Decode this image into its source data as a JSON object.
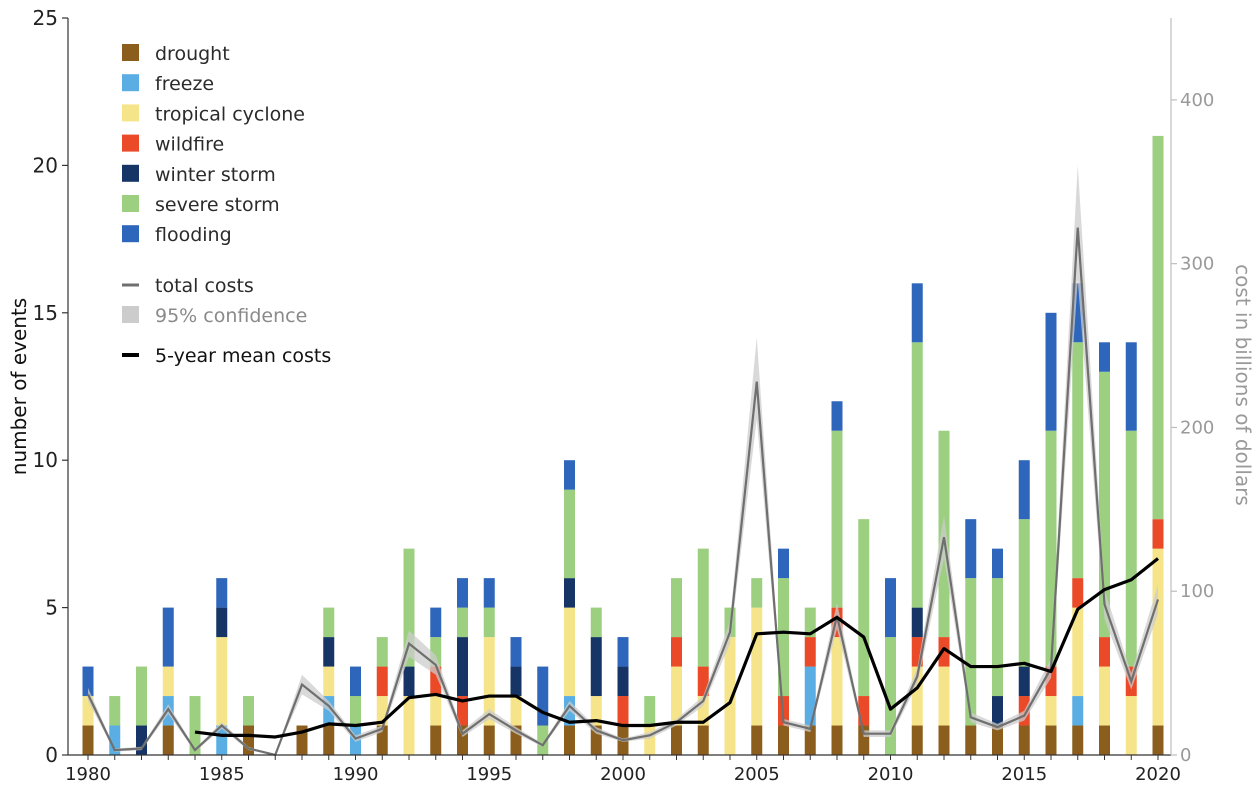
{
  "chart_data": {
    "type": "bar",
    "x": [
      1980,
      1981,
      1982,
      1983,
      1984,
      1985,
      1986,
      1987,
      1988,
      1989,
      1990,
      1991,
      1992,
      1993,
      1994,
      1995,
      1996,
      1997,
      1998,
      1999,
      2000,
      2001,
      2002,
      2003,
      2004,
      2005,
      2006,
      2007,
      2008,
      2009,
      2010,
      2011,
      2012,
      2013,
      2014,
      2015,
      2016,
      2017,
      2018,
      2019,
      2020
    ],
    "x_ticks": [
      "1980",
      "1985",
      "1990",
      "1995",
      "2000",
      "2005",
      "2010",
      "2015",
      "2020"
    ],
    "ylabel": "number of events",
    "y_ticks": [
      "0",
      "5",
      "10",
      "15",
      "20",
      "25"
    ],
    "ylim": [
      0,
      25
    ],
    "y2label": "cost in billions of dollars",
    "y2_ticks": [
      "0",
      "100",
      "200",
      "300",
      "400"
    ],
    "y2lim": [
      0,
      450
    ],
    "stack_order": [
      "drought",
      "freeze",
      "tropical cyclone",
      "wildfire",
      "winter storm",
      "severe storm",
      "flooding"
    ],
    "series": [
      {
        "name": "drought",
        "color": "#8b5e1e",
        "values": [
          1,
          0,
          0,
          1,
          0,
          0,
          1,
          0,
          1,
          1,
          0,
          1,
          0,
          1,
          1,
          1,
          1,
          0,
          1,
          1,
          1,
          0,
          1,
          1,
          0,
          1,
          1,
          1,
          1,
          1,
          0,
          1,
          1,
          1,
          1,
          1,
          1,
          1,
          1,
          0,
          1
        ]
      },
      {
        "name": "freeze",
        "color": "#5aaee3",
        "values": [
          0,
          1,
          0,
          1,
          0,
          1,
          0,
          0,
          0,
          1,
          1,
          0,
          0,
          0,
          0,
          0,
          0,
          0,
          1,
          0,
          0,
          0,
          0,
          0,
          0,
          0,
          0,
          2,
          0,
          0,
          0,
          0,
          0,
          0,
          0,
          0,
          0,
          1,
          0,
          0,
          0
        ]
      },
      {
        "name": "tropical cyclone",
        "color": "#f6e48a",
        "values": [
          1,
          0,
          0,
          1,
          0,
          3,
          0,
          0,
          0,
          1,
          0,
          1,
          2,
          1,
          0,
          3,
          1,
          0,
          3,
          1,
          0,
          1,
          2,
          1,
          4,
          4,
          0,
          0,
          3,
          0,
          0,
          2,
          2,
          0,
          0,
          0,
          1,
          3,
          2,
          2,
          6
        ]
      },
      {
        "name": "wildfire",
        "color": "#ea4a28",
        "values": [
          0,
          0,
          0,
          0,
          0,
          0,
          0,
          0,
          0,
          0,
          0,
          1,
          0,
          1,
          1,
          0,
          0,
          0,
          0,
          0,
          1,
          0,
          1,
          1,
          0,
          0,
          1,
          1,
          1,
          1,
          0,
          1,
          1,
          0,
          0,
          1,
          1,
          1,
          1,
          1,
          1
        ]
      },
      {
        "name": "winter storm",
        "color": "#163566",
        "values": [
          0,
          0,
          1,
          0,
          0,
          1,
          0,
          0,
          0,
          1,
          0,
          0,
          1,
          0,
          2,
          0,
          1,
          0,
          1,
          2,
          1,
          0,
          0,
          0,
          0,
          0,
          0,
          0,
          0,
          0,
          0,
          1,
          0,
          0,
          1,
          1,
          0,
          0,
          0,
          0,
          0
        ]
      },
      {
        "name": "severe storm",
        "color": "#9ccf80",
        "values": [
          0,
          1,
          2,
          0,
          2,
          0,
          1,
          0,
          0,
          1,
          1,
          1,
          4,
          1,
          1,
          1,
          0,
          1,
          3,
          1,
          0,
          1,
          2,
          4,
          1,
          1,
          4,
          1,
          6,
          6,
          4,
          9,
          7,
          5,
          4,
          5,
          8,
          8,
          9,
          8,
          13
        ]
      },
      {
        "name": "flooding",
        "color": "#2e66bb",
        "values": [
          1,
          0,
          0,
          2,
          0,
          1,
          0,
          0,
          0,
          0,
          1,
          0,
          0,
          1,
          1,
          1,
          1,
          2,
          1,
          0,
          1,
          0,
          0,
          0,
          0,
          0,
          1,
          0,
          1,
          0,
          2,
          2,
          0,
          2,
          1,
          2,
          4,
          2,
          1,
          3,
          0
        ]
      }
    ],
    "total_costs": {
      "name": "total costs",
      "color": "#6f6f6f",
      "unit": "billions of dollars",
      "values": [
        37,
        3,
        4,
        28,
        3,
        18,
        4,
        0,
        43,
        30,
        10,
        16,
        68,
        55,
        13,
        25,
        15,
        6,
        30,
        15,
        9,
        12,
        20,
        33,
        75,
        228,
        20,
        16,
        85,
        13,
        13,
        48,
        133,
        23,
        17,
        24,
        53,
        322,
        92,
        45,
        95
      ]
    },
    "confidence_95": {
      "name": "95% confidence",
      "color": "#cccccc",
      "lower": [
        33,
        2,
        3,
        25,
        2,
        16,
        3,
        0,
        37,
        27,
        8,
        14,
        60,
        49,
        11,
        22,
        13,
        5,
        27,
        13,
        8,
        10,
        18,
        30,
        68,
        205,
        18,
        14,
        77,
        11,
        11,
        43,
        120,
        20,
        15,
        21,
        47,
        290,
        83,
        40,
        86
      ],
      "upper": [
        41,
        4,
        5,
        31,
        4,
        20,
        5,
        0,
        49,
        33,
        12,
        18,
        76,
        61,
        15,
        28,
        17,
        7,
        33,
        17,
        10,
        14,
        22,
        36,
        82,
        255,
        22,
        18,
        93,
        15,
        15,
        53,
        146,
        26,
        19,
        27,
        59,
        360,
        101,
        50,
        104
      ]
    },
    "mean_5yr": {
      "name": "5-year mean costs",
      "color": "#000000",
      "x": [
        1984,
        1985,
        1986,
        1987,
        1988,
        1989,
        1990,
        1991,
        1992,
        1993,
        1994,
        1995,
        1996,
        1997,
        1998,
        1999,
        2000,
        2001,
        2002,
        2003,
        2004,
        2005,
        2006,
        2007,
        2008,
        2009,
        2010,
        2011,
        2012,
        2013,
        2014,
        2015,
        2016,
        2017,
        2018,
        2019,
        2020
      ],
      "values": [
        14,
        12,
        12,
        11,
        14,
        19,
        18,
        20,
        35,
        37,
        33,
        36,
        36,
        26,
        20,
        21,
        18,
        18,
        20,
        20,
        32,
        74,
        75,
        74,
        84,
        72,
        28,
        41,
        65,
        54,
        54,
        56,
        51,
        89,
        101,
        107,
        120
      ]
    },
    "legend": [
      "drought",
      "freeze",
      "tropical cyclone",
      "wildfire",
      "winter storm",
      "severe storm",
      "flooding",
      "total costs",
      "95% confidence",
      "5-year mean costs"
    ],
    "legend_position": "top-left",
    "grid": false
  }
}
